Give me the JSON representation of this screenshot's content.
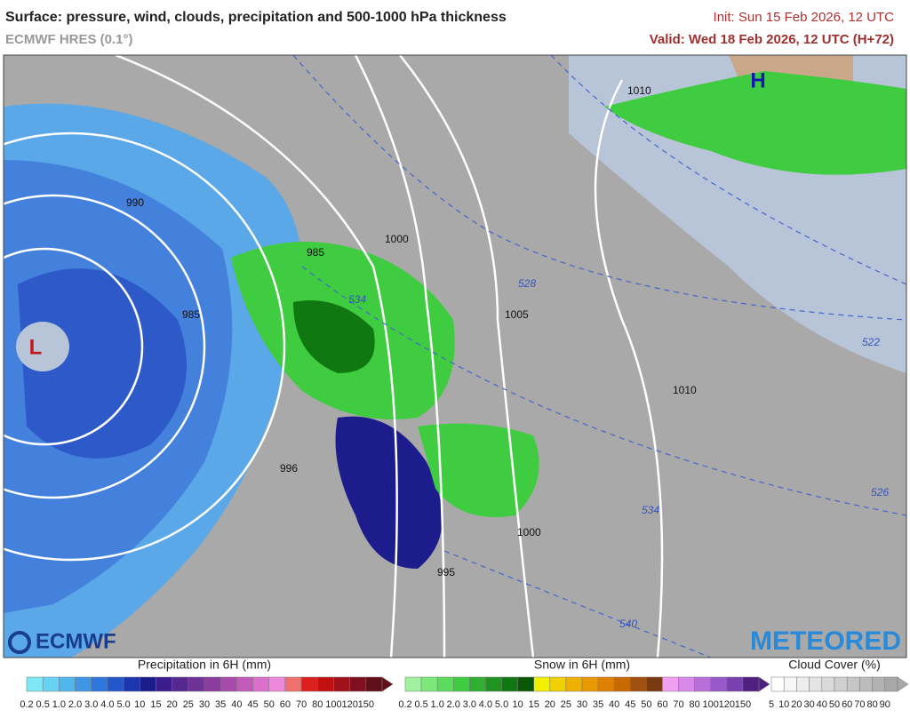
{
  "header": {
    "title": "Surface: pressure, wind, clouds, precipitation and 500-1000 hPa thickness",
    "model": "ECMWF HRES (0.1°)",
    "init": "Init: Sun 15 Feb 2026, 12 UTC",
    "valid": "Valid: Wed 18 Feb 2026, 12 UTC (H+72)"
  },
  "map": {
    "isobar_labels": [
      "990",
      "985",
      "985",
      "1000",
      "1005",
      "1010",
      "1010",
      "996",
      "995",
      "1000"
    ],
    "thickness_labels": [
      "534",
      "528",
      "522",
      "526",
      "534",
      "540"
    ],
    "centers": [
      "L",
      "H"
    ],
    "logos": [
      "ECMWF",
      "METEORED"
    ]
  },
  "legends": [
    {
      "title": "Precipitation in 6H (mm)",
      "labels": [
        "0.2",
        "0.5",
        "1.0",
        "2.0",
        "3.0",
        "4.0",
        "5.0",
        "10",
        "15",
        "20",
        "25",
        "30",
        "35",
        "40",
        "45",
        "50",
        "60",
        "70",
        "80",
        "100",
        "120",
        "150"
      ],
      "colors": [
        "#7fe8f8",
        "#66d2f4",
        "#4fb6ee",
        "#3f96e6",
        "#2f76dc",
        "#2456cc",
        "#1c36b0",
        "#1c1c8c",
        "#3a1c8c",
        "#55288f",
        "#6e3296",
        "#8a3c9f",
        "#a64aac",
        "#c25abb",
        "#dc6ecc",
        "#ee88dc",
        "#f07070",
        "#dc2020",
        "#c01010",
        "#a01018",
        "#801020",
        "#601018"
      ]
    },
    {
      "title": "Snow in 6H (mm)",
      "labels": [
        "0.2",
        "0.5",
        "1.0",
        "2.0",
        "3.0",
        "4.0",
        "5.0",
        "10",
        "15",
        "20",
        "25",
        "30",
        "35",
        "40",
        "45",
        "50",
        "60",
        "70",
        "80",
        "100",
        "120",
        "150"
      ],
      "colors": [
        "#a0f0a0",
        "#7ce87c",
        "#5cdc5c",
        "#40cc40",
        "#30b030",
        "#209420",
        "#107810",
        "#085808",
        "#f0f000",
        "#f0d000",
        "#f0b000",
        "#e89800",
        "#e08000",
        "#c86800",
        "#a05010",
        "#7a3a10",
        "#f0a0f0",
        "#d888e8",
        "#b870d8",
        "#9858c8",
        "#7840b0",
        "#502080"
      ]
    },
    {
      "title": "Cloud Cover (%)",
      "labels": [
        "5",
        "10",
        "20",
        "30",
        "40",
        "50",
        "60",
        "70",
        "80",
        "90"
      ],
      "colors": [
        "#ffffff",
        "#f6f6f6",
        "#eeeeee",
        "#e4e4e4",
        "#dadada",
        "#d0d0d0",
        "#c6c6c6",
        "#bcbcbc",
        "#b2b2b2",
        "#a8a8a8"
      ]
    }
  ]
}
